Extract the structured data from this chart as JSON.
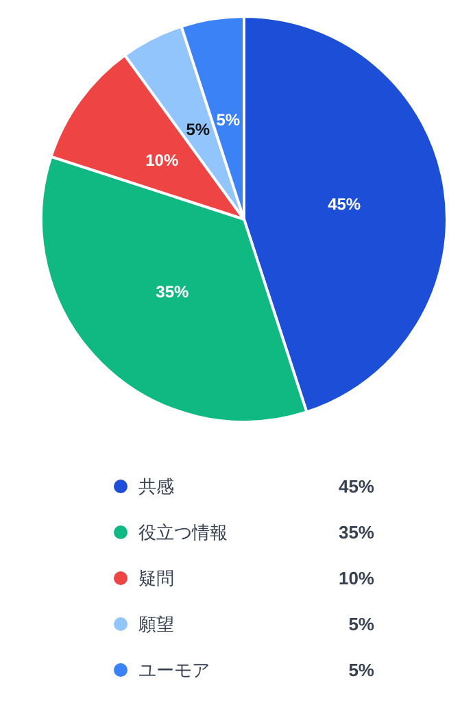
{
  "chart_data": {
    "type": "pie",
    "categories": [
      "共感",
      "役立つ情報",
      "疑問",
      "願望",
      "ユーモア"
    ],
    "values": [
      45,
      35,
      10,
      5,
      5
    ],
    "colors": [
      "#1d4ed8",
      "#10b981",
      "#ef4444",
      "#93c5fd",
      "#3b82f6"
    ],
    "value_labels": [
      "45%",
      "35%",
      "10%",
      "5%",
      "5%"
    ],
    "legend": "bottom"
  }
}
